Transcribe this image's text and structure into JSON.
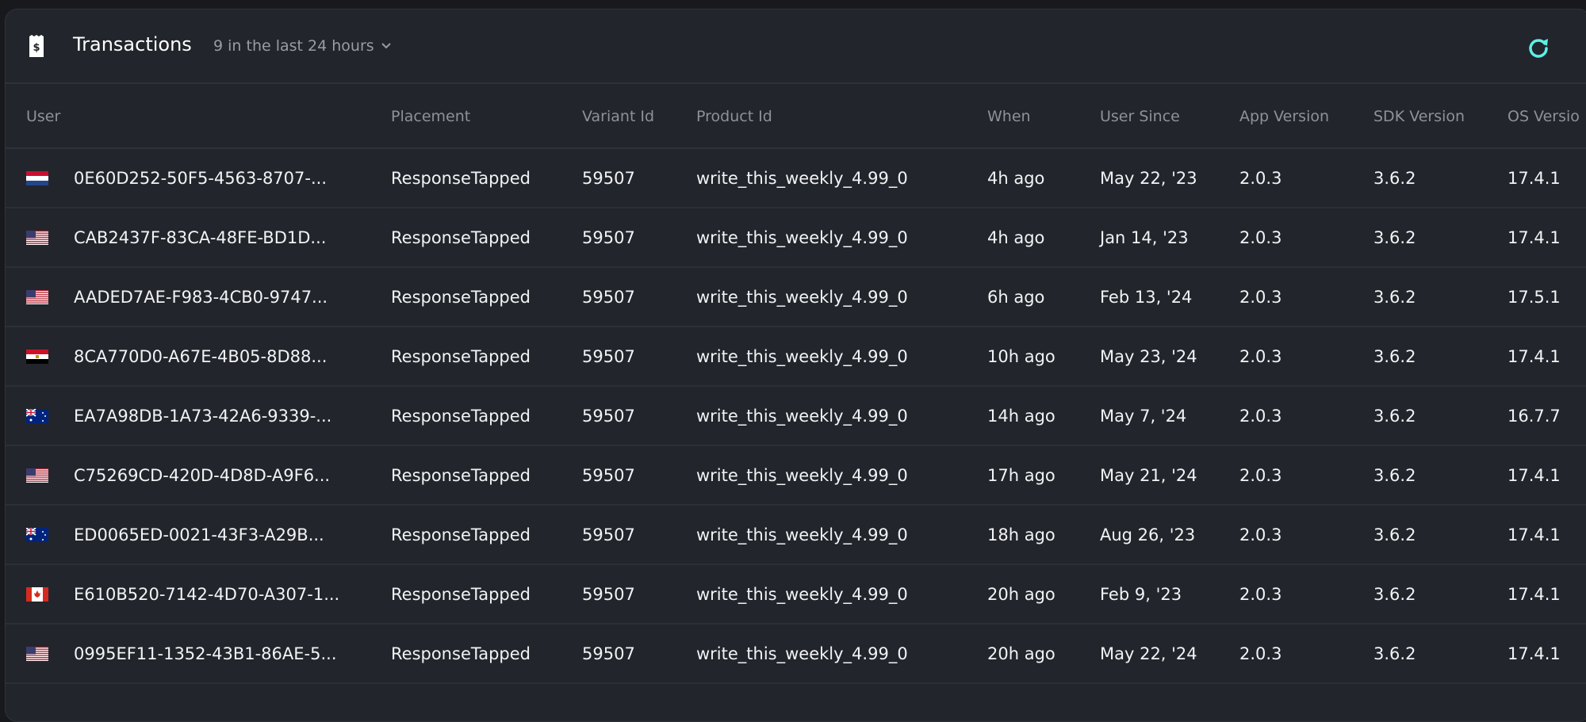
{
  "header": {
    "title": "Transactions",
    "subtitle": "9 in the last 24 hours",
    "refresh_color": "#5cf0e6"
  },
  "columns": [
    "User",
    "Placement",
    "Variant Id",
    "Product Id",
    "When",
    "User Since",
    "App Version",
    "SDK Version",
    "OS Versio"
  ],
  "rows": [
    {
      "flag": "netherlands",
      "user": "0E60D252-50F5-4563-8707-...",
      "placement": "ResponseTapped",
      "variant": "59507",
      "product": "write_this_weekly_4.99_0",
      "when": "4h ago",
      "since": "May 22, '23",
      "app": "2.0.3",
      "sdk": "3.6.2",
      "os": "17.4.1"
    },
    {
      "flag": "usa",
      "user": "CAB2437F-83CA-48FE-BD1D...",
      "placement": "ResponseTapped",
      "variant": "59507",
      "product": "write_this_weekly_4.99_0",
      "when": "4h ago",
      "since": "Jan 14, '23",
      "app": "2.0.3",
      "sdk": "3.6.2",
      "os": "17.4.1"
    },
    {
      "flag": "usa",
      "user": "AADED7AE-F983-4CB0-9747...",
      "placement": "ResponseTapped",
      "variant": "59507",
      "product": "write_this_weekly_4.99_0",
      "when": "6h ago",
      "since": "Feb 13, '24",
      "app": "2.0.3",
      "sdk": "3.6.2",
      "os": "17.5.1"
    },
    {
      "flag": "egypt",
      "user": "8CA770D0-A67E-4B05-8D88...",
      "placement": "ResponseTapped",
      "variant": "59507",
      "product": "write_this_weekly_4.99_0",
      "when": "10h ago",
      "since": "May 23, '24",
      "app": "2.0.3",
      "sdk": "3.6.2",
      "os": "17.4.1"
    },
    {
      "flag": "australia",
      "user": "EA7A98DB-1A73-42A6-9339-...",
      "placement": "ResponseTapped",
      "variant": "59507",
      "product": "write_this_weekly_4.99_0",
      "when": "14h ago",
      "since": "May 7, '24",
      "app": "2.0.3",
      "sdk": "3.6.2",
      "os": "16.7.7"
    },
    {
      "flag": "usa",
      "user": "C75269CD-420D-4D8D-A9F6...",
      "placement": "ResponseTapped",
      "variant": "59507",
      "product": "write_this_weekly_4.99_0",
      "when": "17h ago",
      "since": "May 21, '24",
      "app": "2.0.3",
      "sdk": "3.6.2",
      "os": "17.4.1"
    },
    {
      "flag": "australia",
      "user": "ED0065ED-0021-43F3-A29B...",
      "placement": "ResponseTapped",
      "variant": "59507",
      "product": "write_this_weekly_4.99_0",
      "when": "18h ago",
      "since": "Aug 26, '23",
      "app": "2.0.3",
      "sdk": "3.6.2",
      "os": "17.4.1"
    },
    {
      "flag": "canada",
      "user": "E610B520-7142-4D70-A307-1...",
      "placement": "ResponseTapped",
      "variant": "59507",
      "product": "write_this_weekly_4.99_0",
      "when": "20h ago",
      "since": "Feb 9, '23",
      "app": "2.0.3",
      "sdk": "3.6.2",
      "os": "17.4.1"
    },
    {
      "flag": "usa",
      "user": "0995EF11-1352-43B1-86AE-5...",
      "placement": "ResponseTapped",
      "variant": "59507",
      "product": "write_this_weekly_4.99_0",
      "when": "20h ago",
      "since": "May 22, '24",
      "app": "2.0.3",
      "sdk": "3.6.2",
      "os": "17.4.1"
    }
  ]
}
